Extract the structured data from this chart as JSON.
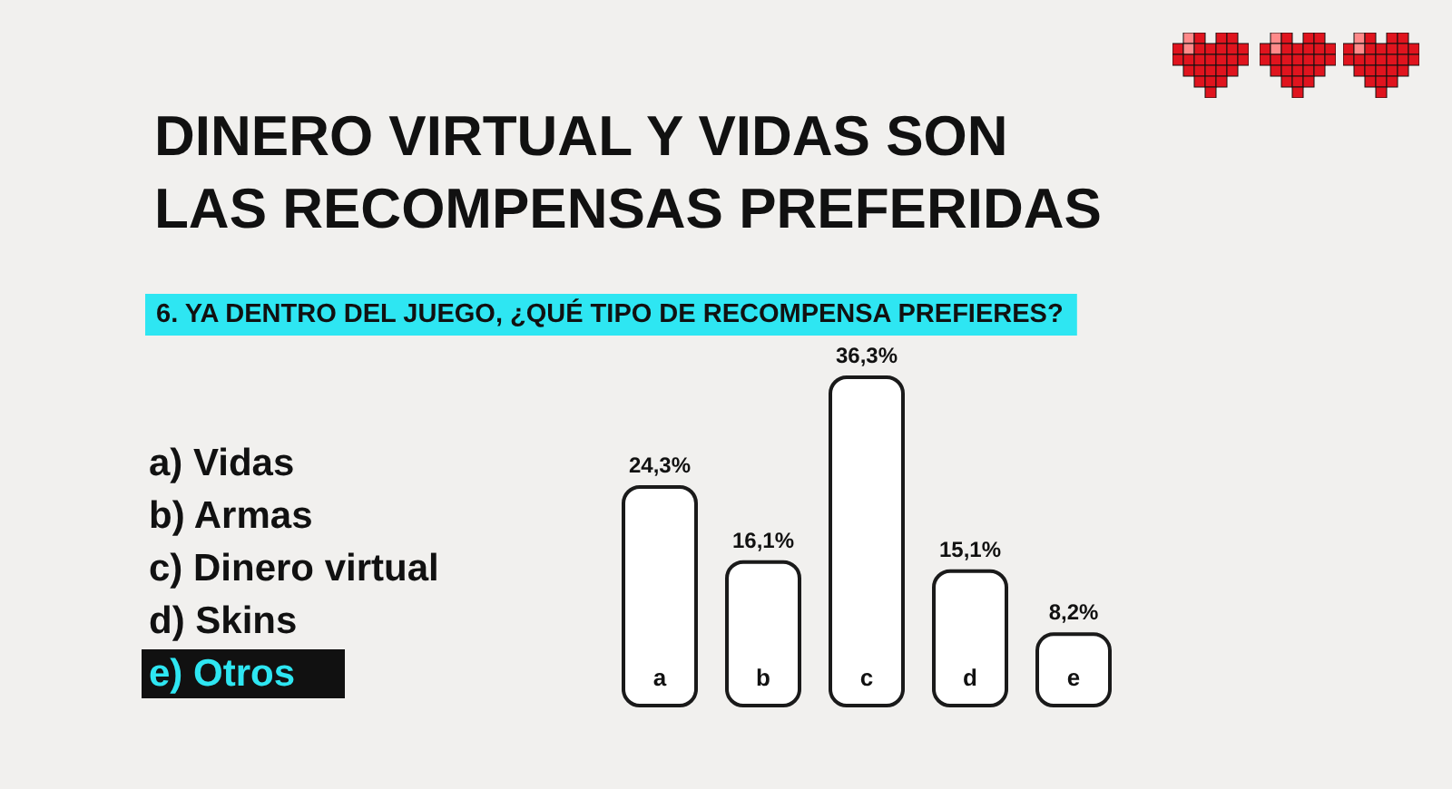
{
  "chart_data": {
    "type": "bar",
    "title": "DINERO VIRTUAL Y VIDAS SON LAS RECOMPENSAS PREFERIDAS",
    "subtitle": "6. YA DENTRO DEL JUEGO, ¿QUÉ TIPO DE RECOMPENSA PREFIERES?",
    "categories": [
      "a",
      "b",
      "c",
      "d",
      "e"
    ],
    "values": [
      24.3,
      16.1,
      36.3,
      15.1,
      8.2
    ],
    "value_labels": [
      "24,3%",
      "16,1%",
      "36,3%",
      "15,1%",
      "8,2%"
    ],
    "color": "#ffffff",
    "annotations": [
      "a) Vidas",
      "b) Armas",
      "c) Dinero virtual",
      "d) Skins",
      "e) Otros"
    ]
  }
}
